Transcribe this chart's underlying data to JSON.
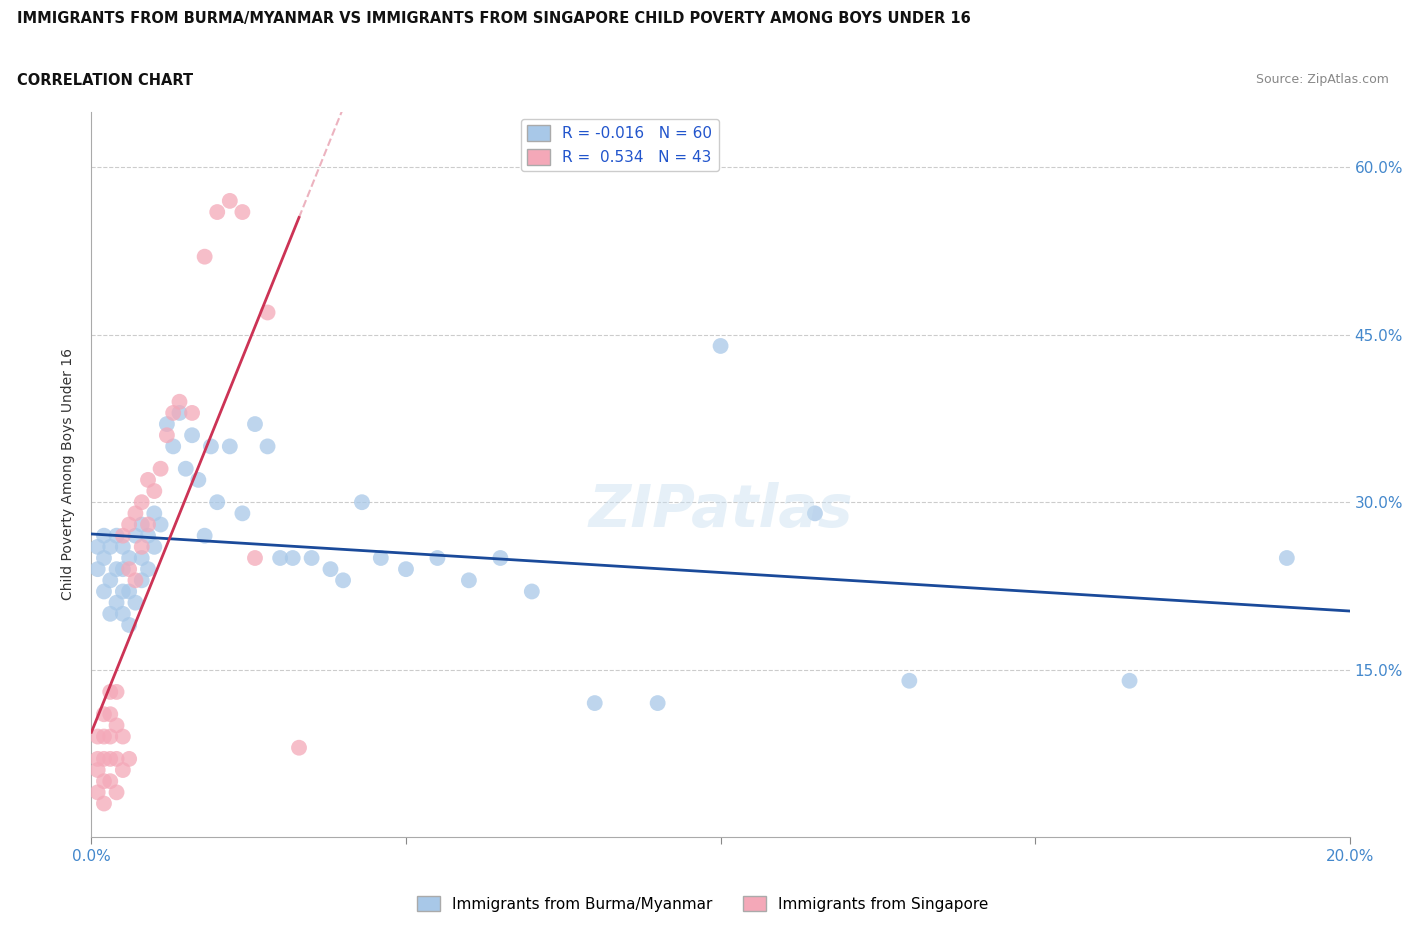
{
  "title": "IMMIGRANTS FROM BURMA/MYANMAR VS IMMIGRANTS FROM SINGAPORE CHILD POVERTY AMONG BOYS UNDER 16",
  "subtitle": "CORRELATION CHART",
  "source": "Source: ZipAtlas.com",
  "ylabel": "Child Poverty Among Boys Under 16",
  "yticks": [
    0.0,
    0.15,
    0.3,
    0.45,
    0.6
  ],
  "xlim": [
    0.0,
    0.2
  ],
  "ylim": [
    0.0,
    0.65
  ],
  "watermark": "ZIPatlas",
  "legend_label_blue": "Immigrants from Burma/Myanmar",
  "legend_label_pink": "Immigrants from Singapore",
  "blue_color": "#a8c8e8",
  "pink_color": "#f4a8b8",
  "blue_line_color": "#1a4a9a",
  "pink_line_color": "#cc3355",
  "dash_color": "#e8a0b0",
  "blue_R": -0.016,
  "blue_N": 60,
  "pink_R": 0.534,
  "pink_N": 43,
  "blue_scatter_x": [
    0.001,
    0.001,
    0.002,
    0.002,
    0.002,
    0.003,
    0.003,
    0.003,
    0.004,
    0.004,
    0.004,
    0.005,
    0.005,
    0.005,
    0.005,
    0.006,
    0.006,
    0.006,
    0.007,
    0.007,
    0.008,
    0.008,
    0.008,
    0.009,
    0.009,
    0.01,
    0.01,
    0.011,
    0.012,
    0.013,
    0.014,
    0.015,
    0.016,
    0.017,
    0.018,
    0.019,
    0.02,
    0.022,
    0.024,
    0.026,
    0.028,
    0.03,
    0.032,
    0.035,
    0.038,
    0.04,
    0.043,
    0.046,
    0.05,
    0.055,
    0.06,
    0.065,
    0.07,
    0.08,
    0.09,
    0.1,
    0.115,
    0.13,
    0.165,
    0.19
  ],
  "blue_scatter_y": [
    0.24,
    0.26,
    0.22,
    0.25,
    0.27,
    0.2,
    0.23,
    0.26,
    0.21,
    0.24,
    0.27,
    0.2,
    0.22,
    0.24,
    0.26,
    0.19,
    0.22,
    0.25,
    0.21,
    0.27,
    0.23,
    0.25,
    0.28,
    0.24,
    0.27,
    0.26,
    0.29,
    0.28,
    0.37,
    0.35,
    0.38,
    0.33,
    0.36,
    0.32,
    0.27,
    0.35,
    0.3,
    0.35,
    0.29,
    0.37,
    0.35,
    0.25,
    0.25,
    0.25,
    0.24,
    0.23,
    0.3,
    0.25,
    0.24,
    0.25,
    0.23,
    0.25,
    0.22,
    0.12,
    0.12,
    0.44,
    0.29,
    0.14,
    0.14,
    0.25
  ],
  "pink_scatter_x": [
    0.001,
    0.001,
    0.001,
    0.001,
    0.002,
    0.002,
    0.002,
    0.002,
    0.002,
    0.003,
    0.003,
    0.003,
    0.003,
    0.003,
    0.004,
    0.004,
    0.004,
    0.004,
    0.005,
    0.005,
    0.005,
    0.006,
    0.006,
    0.006,
    0.007,
    0.007,
    0.008,
    0.008,
    0.009,
    0.009,
    0.01,
    0.011,
    0.012,
    0.013,
    0.014,
    0.016,
    0.018,
    0.02,
    0.022,
    0.024,
    0.026,
    0.028,
    0.033
  ],
  "pink_scatter_y": [
    0.04,
    0.06,
    0.07,
    0.09,
    0.03,
    0.05,
    0.07,
    0.09,
    0.11,
    0.05,
    0.07,
    0.09,
    0.11,
    0.13,
    0.04,
    0.07,
    0.1,
    0.13,
    0.06,
    0.09,
    0.27,
    0.07,
    0.24,
    0.28,
    0.23,
    0.29,
    0.26,
    0.3,
    0.28,
    0.32,
    0.31,
    0.33,
    0.36,
    0.38,
    0.39,
    0.38,
    0.52,
    0.56,
    0.57,
    0.56,
    0.25,
    0.47,
    0.08
  ]
}
